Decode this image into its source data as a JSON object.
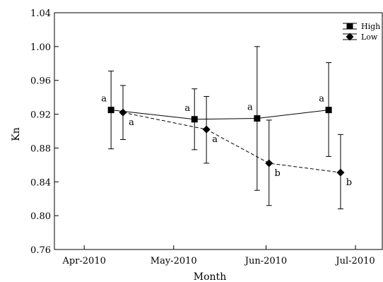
{
  "chart_data": {
    "type": "line",
    "xlabel": "Month",
    "ylabel": "Kn",
    "ylim": [
      0.76,
      1.04
    ],
    "y_ticks": [
      "0.76",
      "0.80",
      "0.84",
      "0.88",
      "0.92",
      "0.96",
      "1.00",
      "1.04"
    ],
    "xlim": [
      "2010-03-22",
      "2010-07-10"
    ],
    "x_ticks": [
      {
        "label": "Apr-2010",
        "date": "2010-04-01"
      },
      {
        "label": "May-2010",
        "date": "2010-05-01"
      },
      {
        "label": "Jun-2010",
        "date": "2010-06-01"
      },
      {
        "label": "Jul-2010",
        "date": "2010-07-01"
      }
    ],
    "grid": false,
    "legend_position": "top-right",
    "series": [
      {
        "name": "High",
        "marker": "square",
        "line_style": "solid",
        "color": "#000000",
        "points": [
          {
            "date": "2010-04-10",
            "y": 0.925,
            "err_low": 0.879,
            "err_high": 0.971,
            "label": "a"
          },
          {
            "date": "2010-05-08",
            "y": 0.914,
            "err_low": 0.878,
            "err_high": 0.95,
            "label": "a"
          },
          {
            "date": "2010-05-29",
            "y": 0.915,
            "err_low": 0.83,
            "err_high": 1.0,
            "label": "a"
          },
          {
            "date": "2010-06-22",
            "y": 0.925,
            "err_low": 0.87,
            "err_high": 0.981,
            "label": "a"
          }
        ]
      },
      {
        "name": "Low",
        "marker": "diamond",
        "line_style": "dashed",
        "color": "#000000",
        "points": [
          {
            "date": "2010-04-14",
            "y": 0.922,
            "err_low": 0.89,
            "err_high": 0.954,
            "label": "a"
          },
          {
            "date": "2010-05-12",
            "y": 0.902,
            "err_low": 0.862,
            "err_high": 0.941,
            "label": "a"
          },
          {
            "date": "2010-06-02",
            "y": 0.862,
            "err_low": 0.812,
            "err_high": 0.913,
            "label": "b"
          },
          {
            "date": "2010-06-26",
            "y": 0.851,
            "err_low": 0.808,
            "err_high": 0.896,
            "label": "b"
          }
        ]
      }
    ]
  }
}
